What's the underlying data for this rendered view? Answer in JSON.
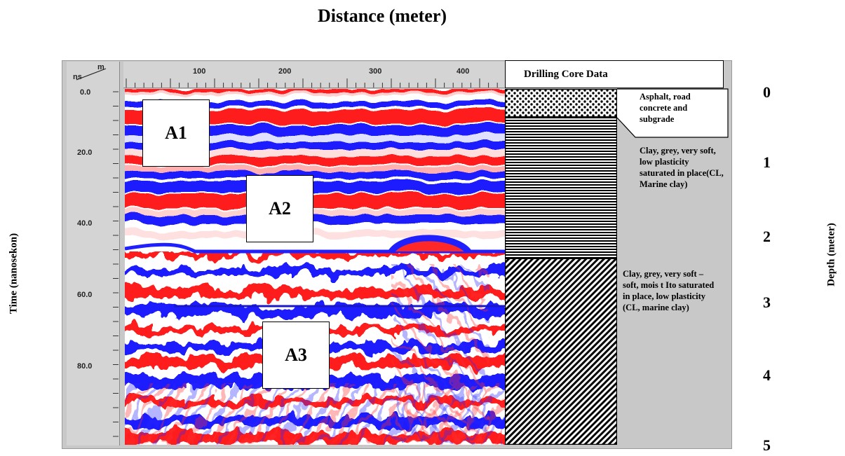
{
  "title": "Distance (meter)",
  "y_left_label": "Time (nanosekon)",
  "y_right_label": "Depth (meter)",
  "unit_marker": {
    "top": "m",
    "bottom": "ns"
  },
  "x_ticks": [
    "100",
    "200",
    "300",
    "400"
  ],
  "y_ticks": [
    "0.0",
    "20.0",
    "40.0",
    "60.0",
    "80.0"
  ],
  "callouts": [
    "A1",
    "A2",
    "A3"
  ],
  "core_header": "Drilling Core Data",
  "layers": [
    {
      "description": "Asphalt, road concrete and subgrade",
      "pattern": "dots"
    },
    {
      "description": "Clay, grey, very soft, low plasticity saturated in place(CL, Marine clay)",
      "pattern": "horizontal-lines"
    },
    {
      "description": "Clay, grey, very soft – soft, mois t Ito saturated in place, low plasticity (CL, marine clay)",
      "pattern": "diagonal-lines"
    }
  ],
  "depth_labels": [
    "0",
    "1",
    "2",
    "3",
    "4",
    "5"
  ],
  "colors": {
    "positive": "#ff1a1a",
    "negative": "#1a1aff",
    "neutral": "#ffffff"
  }
}
